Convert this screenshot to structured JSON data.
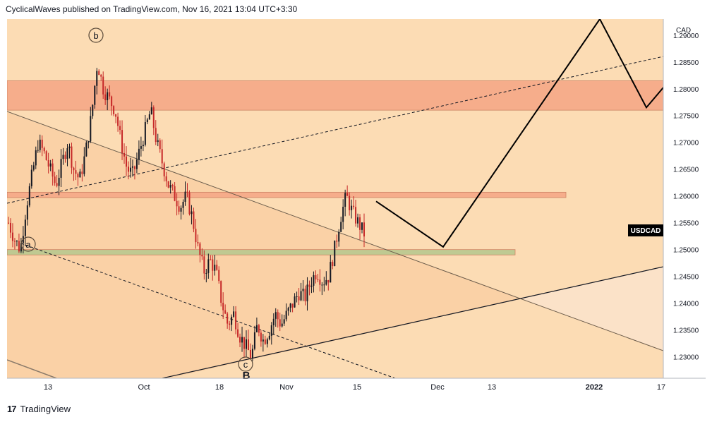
{
  "header": {
    "text": "CyclicalWaves published on TradingView.com, Nov 16, 2021 13:04 UTC+3:30"
  },
  "footer": {
    "brand": "TradingView",
    "logo_icon": "tradingview-logo-icon"
  },
  "colors": {
    "background": "#fcdcb4",
    "resistance_zone": "#f6a887",
    "support_zone": "#b9c98f",
    "candle_up": "#131722",
    "candle_down": "#c62828",
    "price_label_bg": "#000000"
  },
  "chart_data": {
    "type": "candlestick",
    "symbol_label": "USDCAD",
    "currency": "CAD",
    "last_price": 1.253,
    "y_ticks": [
      "1.29000",
      "1.28500",
      "1.28000",
      "1.27500",
      "1.27000",
      "1.26500",
      "1.26000",
      "1.25500",
      "1.25000",
      "1.24500",
      "1.24000",
      "1.23500",
      "1.23000"
    ],
    "x_ticks": [
      "13",
      "Oct",
      "18",
      "Nov",
      "15",
      "Dec",
      "13",
      "2022",
      "17"
    ],
    "ylim": [
      1.226,
      1.293
    ],
    "wave_labels": [
      "b",
      "a",
      "c",
      "B"
    ],
    "zones": [
      {
        "name": "resistance",
        "low": 1.276,
        "high": 1.2815
      },
      {
        "name": "mid-resistance",
        "low": 1.2597,
        "high": 1.2607
      },
      {
        "name": "support",
        "low": 1.249,
        "high": 1.25
      }
    ],
    "price_path": [
      1.255,
      1.252,
      1.25,
      1.258,
      1.264,
      1.27,
      1.268,
      1.265,
      1.262,
      1.266,
      1.27,
      1.265,
      1.263,
      1.268,
      1.275,
      1.285,
      1.28,
      1.278,
      1.276,
      1.27,
      1.265,
      1.264,
      1.268,
      1.272,
      1.276,
      1.27,
      1.266,
      1.262,
      1.26,
      1.258,
      1.26,
      1.256,
      1.25,
      1.246,
      1.248,
      1.246,
      1.24,
      1.236,
      1.238,
      1.234,
      1.232,
      1.23,
      1.236,
      1.233,
      1.235,
      1.238,
      1.236,
      1.238,
      1.24,
      1.242,
      1.241,
      1.244,
      1.246,
      1.244,
      1.245,
      1.25,
      1.256,
      1.26,
      1.257,
      1.255,
      1.253
    ],
    "projection": [
      1.259,
      1.2505,
      1.293,
      1.2765,
      1.281
    ]
  }
}
